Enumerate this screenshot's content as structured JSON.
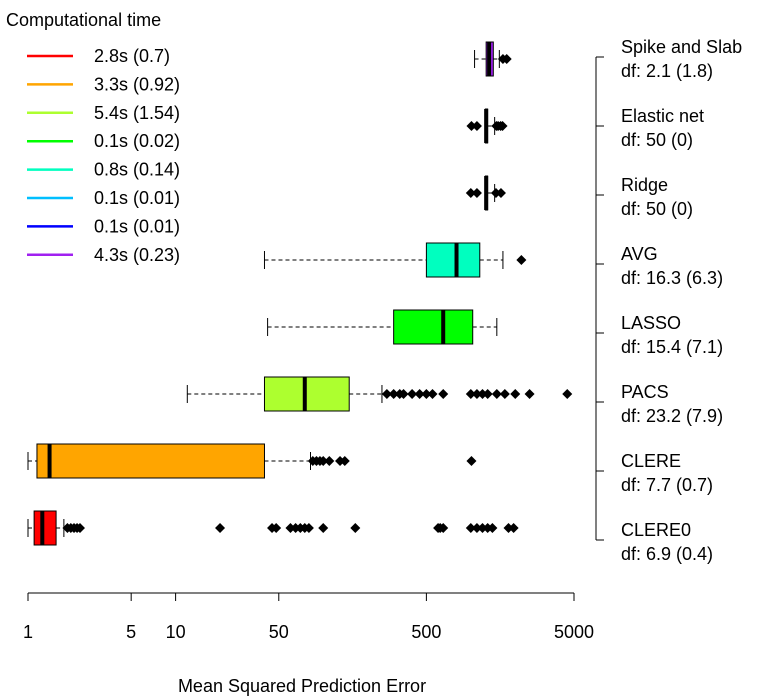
{
  "chart_data": {
    "type": "boxplot",
    "orientation": "horizontal",
    "xlabel": "Mean Squared Prediction Error",
    "x_scale": "log10",
    "xlim": [
      1,
      5000
    ],
    "x_ticks": [
      1,
      5,
      10,
      50,
      500,
      5000
    ],
    "x_tick_labels": [
      "1",
      "5",
      "10",
      "50",
      "500",
      "5000"
    ],
    "legend": {
      "title": "Computational time",
      "position": "top-left",
      "entries": [
        {
          "label": "2.8s (0.7)",
          "color": "#ff0000"
        },
        {
          "label": "3.3s (0.92)",
          "color": "#ffa500"
        },
        {
          "label": "5.4s (1.54)",
          "color": "#adff2f"
        },
        {
          "label": "0.1s (0.02)",
          "color": "#00ff00"
        },
        {
          "label": "0.8s (0.14)",
          "color": "#00ffbf"
        },
        {
          "label": "0.1s (0.01)",
          "color": "#00bfff"
        },
        {
          "label": "0.1s (0.01)",
          "color": "#0000ff"
        },
        {
          "label": "4.3s (0.23)",
          "color": "#a020f0"
        }
      ]
    },
    "series": [
      {
        "name": "Spike and Slab",
        "df": "df: 2.1 (1.8)",
        "color": "#a020f0",
        "whisker_low": 1060,
        "q1": 1270,
        "median": 1330,
        "q3": 1420,
        "whisker_high": 1560,
        "outliers": [
          1650,
          1750
        ]
      },
      {
        "name": "Elastic net",
        "df": "df: 50 (0)",
        "color": "#0000ff",
        "whisker_low": 1250,
        "q1": 1255,
        "median": 1270,
        "q3": 1300,
        "whisker_high": 1450,
        "outliers": [
          1010,
          1100,
          1490,
          1530,
          1590,
          1640
        ]
      },
      {
        "name": "Ridge",
        "df": "df: 50 (0)",
        "color": "#00bfff",
        "whisker_low": 1250,
        "q1": 1255,
        "median": 1270,
        "q3": 1300,
        "whisker_high": 1450,
        "outliers": [
          1000,
          1100,
          1480,
          1600
        ]
      },
      {
        "name": "AVG",
        "df": "df: 16.3 (6.3)",
        "color": "#00ffbf",
        "whisker_low": 40,
        "q1": 500,
        "median": 800,
        "q3": 1150,
        "whisker_high": 1650,
        "outliers": [
          2200
        ]
      },
      {
        "name": "LASSO",
        "df": "df: 15.4 (7.1)",
        "color": "#00ff00",
        "whisker_low": 42,
        "q1": 300,
        "median": 650,
        "q3": 1030,
        "whisker_high": 1500,
        "outliers": []
      },
      {
        "name": "PACS",
        "df": "df: 23.2 (7.9)",
        "color": "#adff2f",
        "whisker_low": 12,
        "q1": 40,
        "median": 75,
        "q3": 150,
        "whisker_high": 250,
        "outliers": [
          270,
          300,
          330,
          350,
          400,
          450,
          500,
          550,
          650,
          1000,
          1100,
          1200,
          1300,
          1500,
          1700,
          2000,
          2500,
          4500
        ]
      },
      {
        "name": "CLERE",
        "df": "df: 7.7 (0.7)",
        "color": "#ffa500",
        "whisker_low": 1.0,
        "q1": 1.15,
        "median": 1.4,
        "q3": 40,
        "whisker_high": 82,
        "outliers": [
          85,
          90,
          95,
          100,
          110,
          130,
          140,
          1010
        ]
      },
      {
        "name": "CLERE0",
        "df": "df: 6.9 (0.4)",
        "color": "#ff0000",
        "whisker_low": 1.0,
        "q1": 1.1,
        "median": 1.25,
        "q3": 1.55,
        "whisker_high": 1.75,
        "outliers": [
          1.85,
          1.95,
          2.05,
          2.15,
          2.25,
          20,
          45,
          48,
          60,
          65,
          70,
          75,
          80,
          100,
          165,
          600,
          620,
          650,
          1000,
          1100,
          1200,
          1300,
          1400,
          1800,
          1950
        ]
      }
    ]
  }
}
